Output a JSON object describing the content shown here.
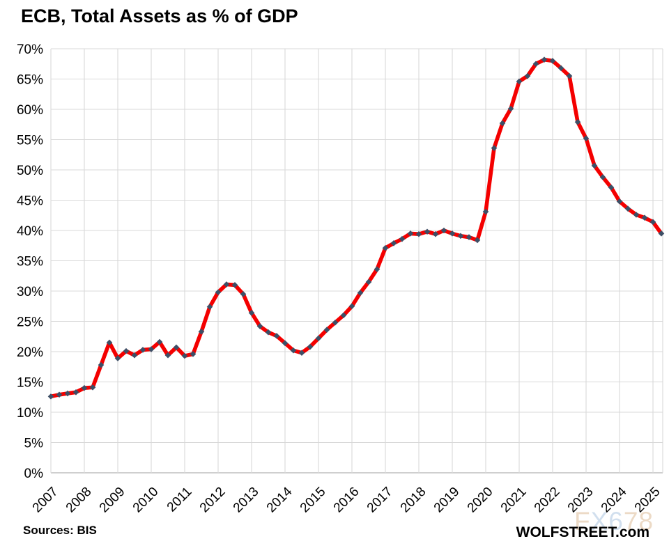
{
  "header": {
    "title": "ECB, Total Assets as % of GDP"
  },
  "footer": {
    "sources": "Sources: BIS",
    "branding": "WOLFSTREET.com",
    "watermark": {
      "text": "FX678",
      "char_colors": [
        "#ecd9c3",
        "#cfdeee",
        "#cfdeee",
        "#ecd9c3",
        "#ecd9c3"
      ]
    }
  },
  "chart_data": {
    "type": "line",
    "title": "ECB, Total Assets as % of GDP",
    "xlabel": "",
    "ylabel": "",
    "ylim": [
      0,
      70
    ],
    "y_tick_step": 5,
    "y_tick_suffix": "%",
    "grid": true,
    "legend": "none",
    "x_frequency": "quarterly",
    "x_start": "2007Q1",
    "x_end": "2025Q2",
    "year_labels": [
      "2007",
      "2008",
      "2009",
      "2010",
      "2011",
      "2012",
      "2013",
      "2014",
      "2015",
      "2016",
      "2017",
      "2018",
      "2019",
      "2020",
      "2021",
      "2022",
      "2023",
      "2024",
      "2025"
    ],
    "series": [
      {
        "name": "ECB total assets as % of GDP",
        "line_color": "#f40000",
        "marker": "diamond",
        "marker_color": "#3d4f66",
        "values": [
          12.6,
          12.9,
          13.1,
          13.3,
          14.0,
          14.1,
          17.8,
          21.5,
          18.9,
          20.1,
          19.4,
          20.3,
          20.4,
          21.6,
          19.4,
          20.7,
          19.3,
          19.6,
          23.3,
          27.4,
          29.8,
          31.1,
          31.0,
          29.5,
          26.4,
          24.2,
          23.2,
          22.6,
          21.4,
          20.2,
          19.8,
          20.8,
          22.2,
          23.6,
          24.8,
          26.0,
          27.5,
          29.7,
          31.5,
          33.6,
          37.1,
          37.9,
          38.6,
          39.5,
          39.4,
          39.8,
          39.4,
          40.0,
          39.5,
          39.1,
          38.9,
          38.4,
          43.1,
          53.6,
          57.7,
          60.1,
          64.6,
          65.5,
          67.5,
          68.2,
          68.0,
          66.8,
          65.5,
          57.9,
          55.2,
          50.7,
          48.8,
          47.1,
          44.8,
          43.6,
          42.6,
          42.1,
          41.4,
          39.5
        ]
      }
    ],
    "gridline_color": "#d9d9d9",
    "axis_line_color": "#bfbfbf"
  }
}
